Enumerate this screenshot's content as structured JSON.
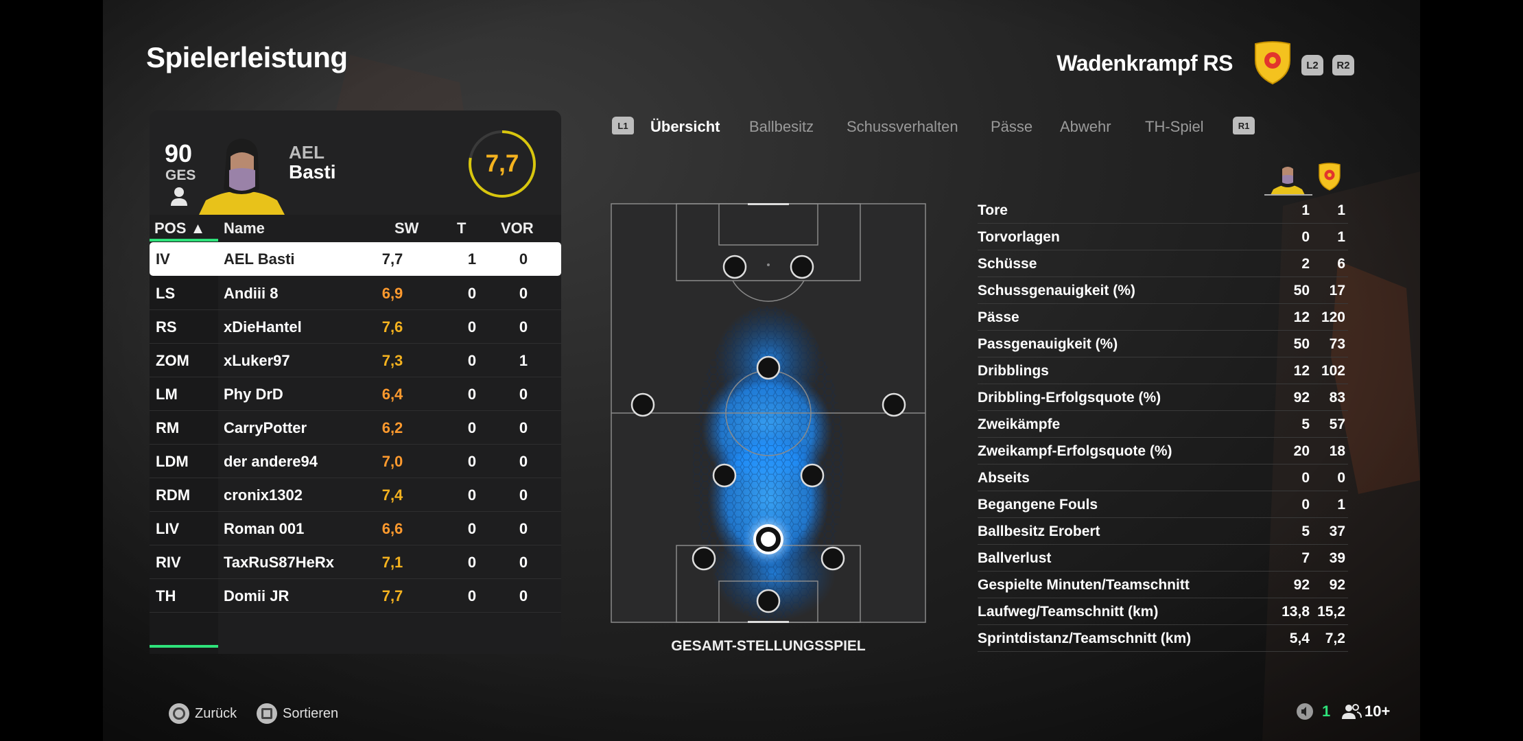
{
  "page": {
    "title": "Spielerleistung"
  },
  "club": {
    "name": "Wadenkrampf RS",
    "l2_label": "L2",
    "r2_label": "R2",
    "crest_color": "#f4c21f"
  },
  "player_card": {
    "overall": "90",
    "overall_label": "GES",
    "first_name": "AEL",
    "last_name": "Basti",
    "rating": "7,7",
    "rating_color": "#f4b21f"
  },
  "table": {
    "headers": {
      "pos": "POS ▲",
      "name": "Name",
      "sw": "SW",
      "t": "T",
      "vor": "VOR"
    },
    "rows": [
      {
        "pos": "IV",
        "name": "AEL Basti",
        "sw": "7,7",
        "t": "1",
        "vor": "0"
      },
      {
        "pos": "LS",
        "name": "Andiii 8",
        "sw": "6,9",
        "t": "0",
        "vor": "0"
      },
      {
        "pos": "RS",
        "name": "xDieHantel",
        "sw": "7,6",
        "t": "0",
        "vor": "0"
      },
      {
        "pos": "ZOM",
        "name": "xLuker97",
        "sw": "7,3",
        "t": "0",
        "vor": "1"
      },
      {
        "pos": "LM",
        "name": "Phy DrD",
        "sw": "6,4",
        "t": "0",
        "vor": "0"
      },
      {
        "pos": "RM",
        "name": "CarryPotter",
        "sw": "6,2",
        "t": "0",
        "vor": "0"
      },
      {
        "pos": "LDM",
        "name": "der andere94",
        "sw": "7,0",
        "t": "0",
        "vor": "0"
      },
      {
        "pos": "RDM",
        "name": "cronix1302",
        "sw": "7,4",
        "t": "0",
        "vor": "0"
      },
      {
        "pos": "LIV",
        "name": "Roman 001",
        "sw": "6,6",
        "t": "0",
        "vor": "0"
      },
      {
        "pos": "RIV",
        "name": "TaxRuS87HeRx",
        "sw": "7,1",
        "t": "0",
        "vor": "0"
      },
      {
        "pos": "TH",
        "name": "Domii JR",
        "sw": "7,7",
        "t": "0",
        "vor": "0"
      }
    ]
  },
  "tabs": {
    "left_button": "L1",
    "right_button": "R1",
    "items": [
      "Übersicht",
      "Ballbesitz",
      "Schussverhalten",
      "Pässe",
      "Abwehr",
      "TH-Spiel"
    ],
    "active": "Übersicht"
  },
  "pitch": {
    "caption": "GESAMT-STELLUNGSSPIEL",
    "heat_color": "#1e8fff"
  },
  "stats": [
    {
      "label": "Tore",
      "player": "1",
      "team": "1"
    },
    {
      "label": "Torvorlagen",
      "player": "0",
      "team": "1"
    },
    {
      "label": "Schüsse",
      "player": "2",
      "team": "6"
    },
    {
      "label": "Schussgenauigkeit (%)",
      "player": "50",
      "team": "17"
    },
    {
      "label": "Pässe",
      "player": "12",
      "team": "120"
    },
    {
      "label": "Passgenauigkeit (%)",
      "player": "50",
      "team": "73"
    },
    {
      "label": "Dribblings",
      "player": "12",
      "team": "102"
    },
    {
      "label": "Dribbling-Erfolgsquote (%)",
      "player": "92",
      "team": "83"
    },
    {
      "label": "Zweikämpfe",
      "player": "5",
      "team": "57"
    },
    {
      "label": "Zweikampf-Erfolgsquote (%)",
      "player": "20",
      "team": "18"
    },
    {
      "label": "Abseits",
      "player": "0",
      "team": "0"
    },
    {
      "label": "Begangene Fouls",
      "player": "0",
      "team": "1"
    },
    {
      "label": "Ballbesitz Erobert",
      "player": "5",
      "team": "37"
    },
    {
      "label": "Ballverlust",
      "player": "7",
      "team": "39"
    },
    {
      "label": "Gespielte Minuten/Teamschnitt",
      "player": "92",
      "team": "92"
    },
    {
      "label": "Laufweg/Teamschnitt (km)",
      "player": "13,8",
      "team": "15,2"
    },
    {
      "label": "Sprintdistanz/Teamschnitt (km)",
      "player": "5,4",
      "team": "7,2"
    }
  ],
  "footer": {
    "back_label": "Zurück",
    "sort_label": "Sortieren",
    "party_count": "1",
    "players_count": "10+",
    "accent_color": "#2ee27a"
  }
}
